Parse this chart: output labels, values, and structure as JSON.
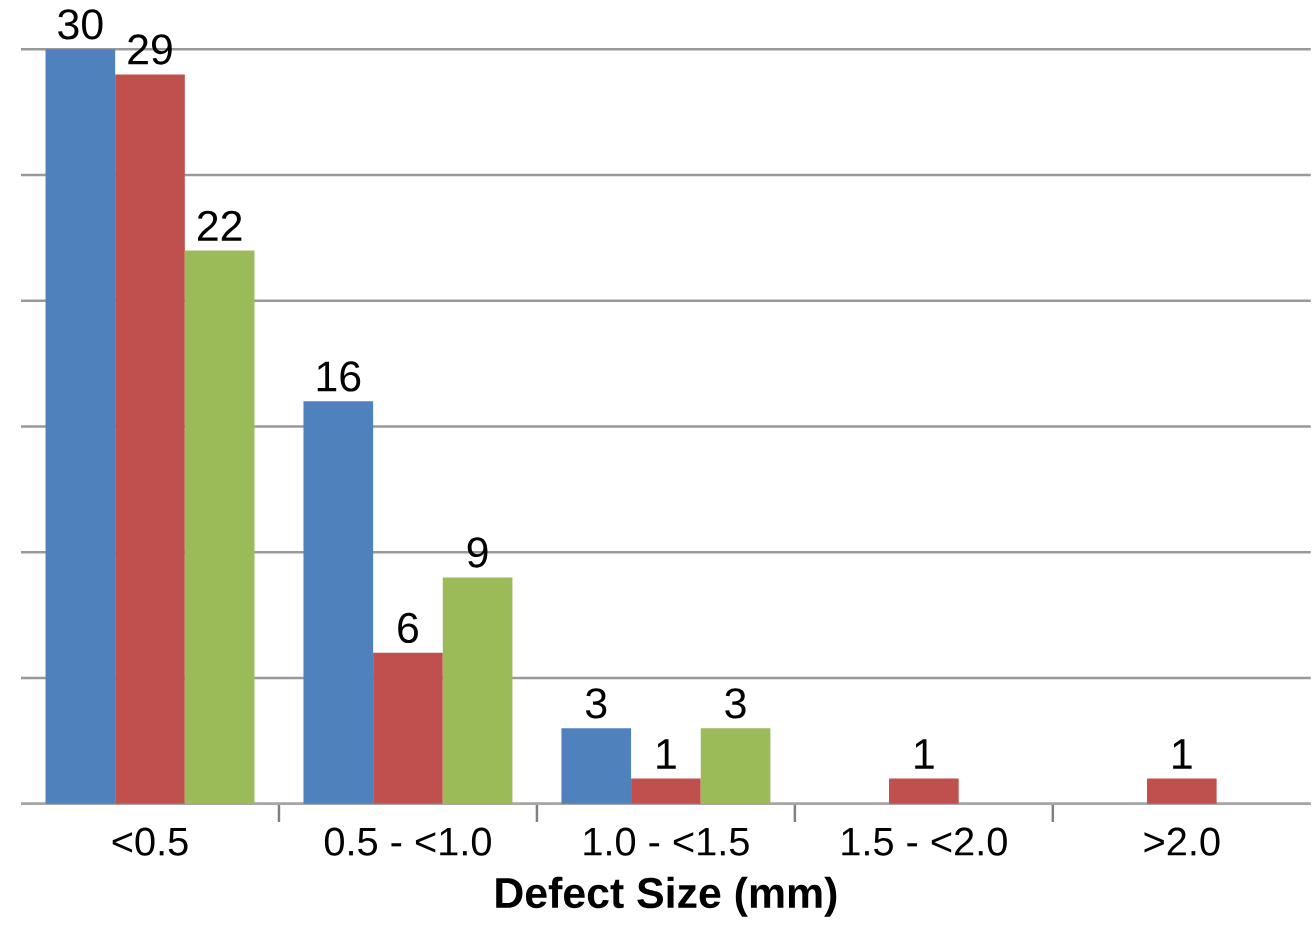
{
  "chart_data": {
    "type": "bar",
    "xlabel": "Defect Size (mm)",
    "categories": [
      "<0.5",
      "0.5 - <1.0",
      "1.0 - <1.5",
      "1.5 - <2.0",
      ">2.0"
    ],
    "series": [
      {
        "color": "#4f81bd",
        "values": [
          30,
          16,
          3,
          0,
          0
        ],
        "value_labels": [
          "30",
          "16",
          "3",
          null,
          null
        ]
      },
      {
        "color": "#c0504d",
        "values": [
          29,
          6,
          1,
          1,
          1
        ],
        "value_labels": [
          "29",
          "6",
          "1",
          "1",
          "1"
        ]
      },
      {
        "color": "#9bbb59",
        "values": [
          22,
          9,
          3,
          0,
          0
        ],
        "value_labels": [
          "22",
          "9",
          "3",
          null,
          null
        ]
      }
    ],
    "ylim": [
      0,
      30
    ],
    "tick_labels": "x",
    "grid": "y"
  }
}
